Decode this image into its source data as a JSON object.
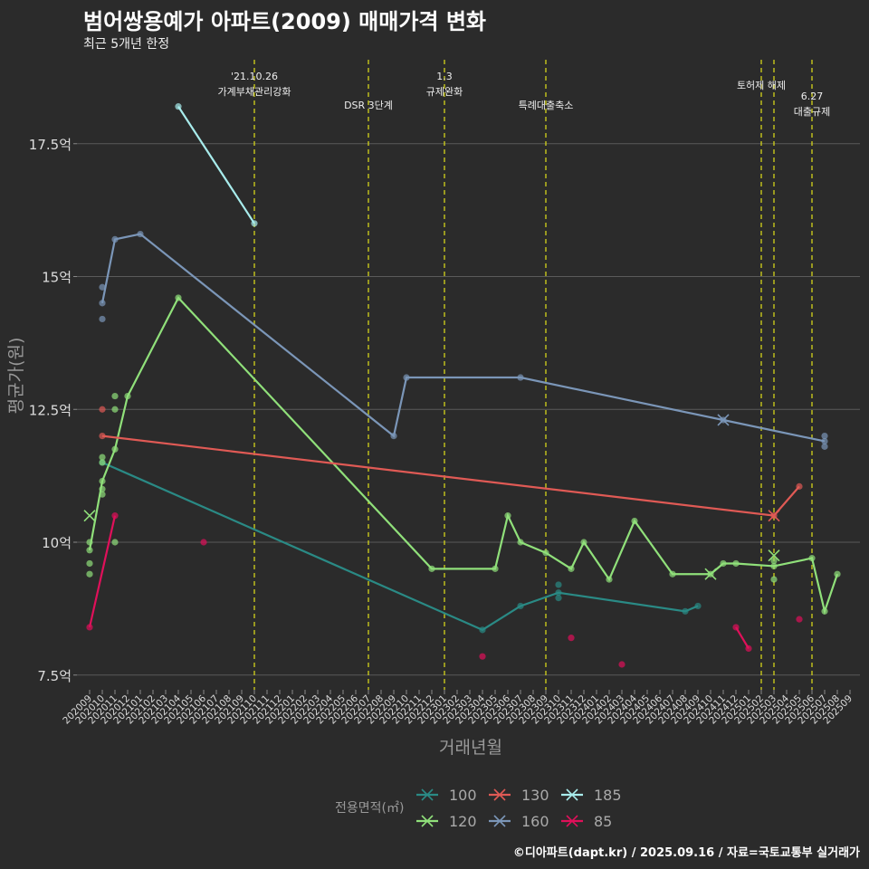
{
  "chart_data": {
    "type": "line",
    "title": "범어쌍용예가 아파트(2009) 매매가격 변화",
    "subtitle": "최근 5개년 한정",
    "xlabel": "거래년월",
    "ylabel": "평균가(원)",
    "ylim": [
      7.2,
      18.8
    ],
    "yticks": [
      7.5,
      10,
      12.5,
      15,
      17.5
    ],
    "ytick_labels": [
      "7.5억",
      "10억",
      "12.5억",
      "15억",
      "17.5억"
    ],
    "categories": [
      "202009",
      "202010",
      "202011",
      "202012",
      "202101",
      "202102",
      "202103",
      "202104",
      "202105",
      "202106",
      "202107",
      "202108",
      "202109",
      "202110",
      "202111",
      "202112",
      "202201",
      "202202",
      "202203",
      "202204",
      "202205",
      "202206",
      "202207",
      "202208",
      "202209",
      "202210",
      "202211",
      "202212",
      "202301",
      "202302",
      "202303",
      "202304",
      "202305",
      "202306",
      "202307",
      "202308",
      "202309",
      "202310",
      "202311",
      "202312",
      "202401",
      "202402",
      "202403",
      "202404",
      "202405",
      "202406",
      "202407",
      "202408",
      "202409",
      "202410",
      "202411",
      "202412",
      "202501",
      "202502",
      "202503",
      "202504",
      "202505",
      "202506",
      "202507",
      "202508",
      "202509"
    ],
    "events": [
      {
        "month": "202110",
        "lines": [
          "'21.10.26",
          "가계부채관리강화"
        ],
        "row": 0
      },
      {
        "month": "202207",
        "lines": [
          "DSR 3단계"
        ],
        "row": 2
      },
      {
        "month": "202301",
        "lines": [
          "1.3",
          "규제완화"
        ],
        "row": 0
      },
      {
        "month": "202309",
        "lines": [
          "특례대출축소"
        ],
        "row": 2
      },
      {
        "month": "202502",
        "lines": [],
        "row": 0
      },
      {
        "month": "202503",
        "lines": [
          "토허제 해제"
        ],
        "row": 1,
        "shift": -0.5
      },
      {
        "month": "202506",
        "lines": [
          "6.27",
          "대출규제"
        ],
        "row": 3
      }
    ],
    "event_color": "#d4d41a",
    "legend_title": "전용면적(㎡)",
    "legend_position": "bottom",
    "series": [
      {
        "name": "100",
        "color": "#2a8a85",
        "line": [
          [
            "202010",
            11.5
          ],
          [
            "202304",
            8.35
          ],
          [
            "202307",
            8.8
          ],
          [
            "202310",
            9.05
          ],
          [
            "202408",
            8.7
          ],
          [
            "202409",
            8.8
          ]
        ],
        "dots": [
          [
            "202310",
            9.2
          ],
          [
            "202310",
            8.95
          ]
        ],
        "crosses": []
      },
      {
        "name": "120",
        "color": "#90e07a",
        "line": [
          [
            "202009",
            9.85
          ],
          [
            "202010",
            11.15
          ],
          [
            "202011",
            11.75
          ],
          [
            "202012",
            12.75
          ],
          [
            "202104",
            14.6
          ],
          [
            "202212",
            9.5
          ],
          [
            "202305",
            9.5
          ],
          [
            "202306",
            10.5
          ],
          [
            "202307",
            10.0
          ],
          [
            "202309",
            9.8
          ],
          [
            "202311",
            9.5
          ],
          [
            "202312",
            10.0
          ],
          [
            "202402",
            9.3
          ],
          [
            "202404",
            10.4
          ],
          [
            "202407",
            9.4
          ],
          [
            "202410",
            9.4
          ],
          [
            "202411",
            9.6
          ],
          [
            "202412",
            9.6
          ],
          [
            "202503",
            9.55
          ],
          [
            "202506",
            9.7
          ],
          [
            "202507",
            8.7
          ],
          [
            "202508",
            9.4
          ]
        ],
        "dots": [
          [
            "202009",
            10.0
          ],
          [
            "202009",
            9.6
          ],
          [
            "202009",
            9.4
          ],
          [
            "202010",
            11.6
          ],
          [
            "202010",
            11.5
          ],
          [
            "202010",
            11.0
          ],
          [
            "202010",
            10.9
          ],
          [
            "202011",
            12.75
          ],
          [
            "202011",
            12.5
          ],
          [
            "202011",
            10.0
          ],
          [
            "202503",
            9.65
          ],
          [
            "202503",
            9.3
          ]
        ],
        "crosses": [
          [
            "202009",
            10.5
          ],
          [
            "202410",
            9.4
          ],
          [
            "202503",
            9.75
          ]
        ]
      },
      {
        "name": "130",
        "color": "#e05a55",
        "line": [
          [
            "202010",
            12.0
          ],
          [
            "202503",
            10.5
          ],
          [
            "202505",
            11.05
          ]
        ],
        "dots": [
          [
            "202010",
            12.5
          ]
        ],
        "crosses": [
          [
            "202503",
            10.5
          ]
        ]
      },
      {
        "name": "160",
        "color": "#7b96b8",
        "line": [
          [
            "202010",
            14.5
          ],
          [
            "202011",
            15.7
          ],
          [
            "202101",
            15.8
          ],
          [
            "202209",
            12.0
          ],
          [
            "202210",
            13.1
          ],
          [
            "202307",
            13.1
          ],
          [
            "202411",
            12.3
          ],
          [
            "202507",
            11.9
          ]
        ],
        "dots": [
          [
            "202010",
            14.8
          ],
          [
            "202010",
            14.2
          ],
          [
            "202507",
            12.0
          ],
          [
            "202507",
            11.8
          ]
        ],
        "crosses": [
          [
            "202411",
            12.3
          ]
        ]
      },
      {
        "name": "185",
        "color": "#a8ecec",
        "line": [
          [
            "202104",
            18.2
          ],
          [
            "202110",
            16.0
          ]
        ],
        "dots": [],
        "crosses": []
      },
      {
        "name": "85",
        "color": "#e0105a",
        "line": [
          [
            "202009",
            8.4
          ],
          [
            "202011",
            10.5
          ]
        ],
        "line2": [
          [
            "202412",
            8.4
          ],
          [
            "202501",
            8.0
          ]
        ],
        "dots": [
          [
            "202106",
            10.0
          ],
          [
            "202304",
            7.85
          ],
          [
            "202311",
            8.2
          ],
          [
            "202403",
            7.7
          ],
          [
            "202505",
            8.55
          ]
        ],
        "crosses": []
      }
    ]
  },
  "footer": "©디아파트(dapt.kr) / 2025.09.16 / 자료=국토교통부 실거래가"
}
